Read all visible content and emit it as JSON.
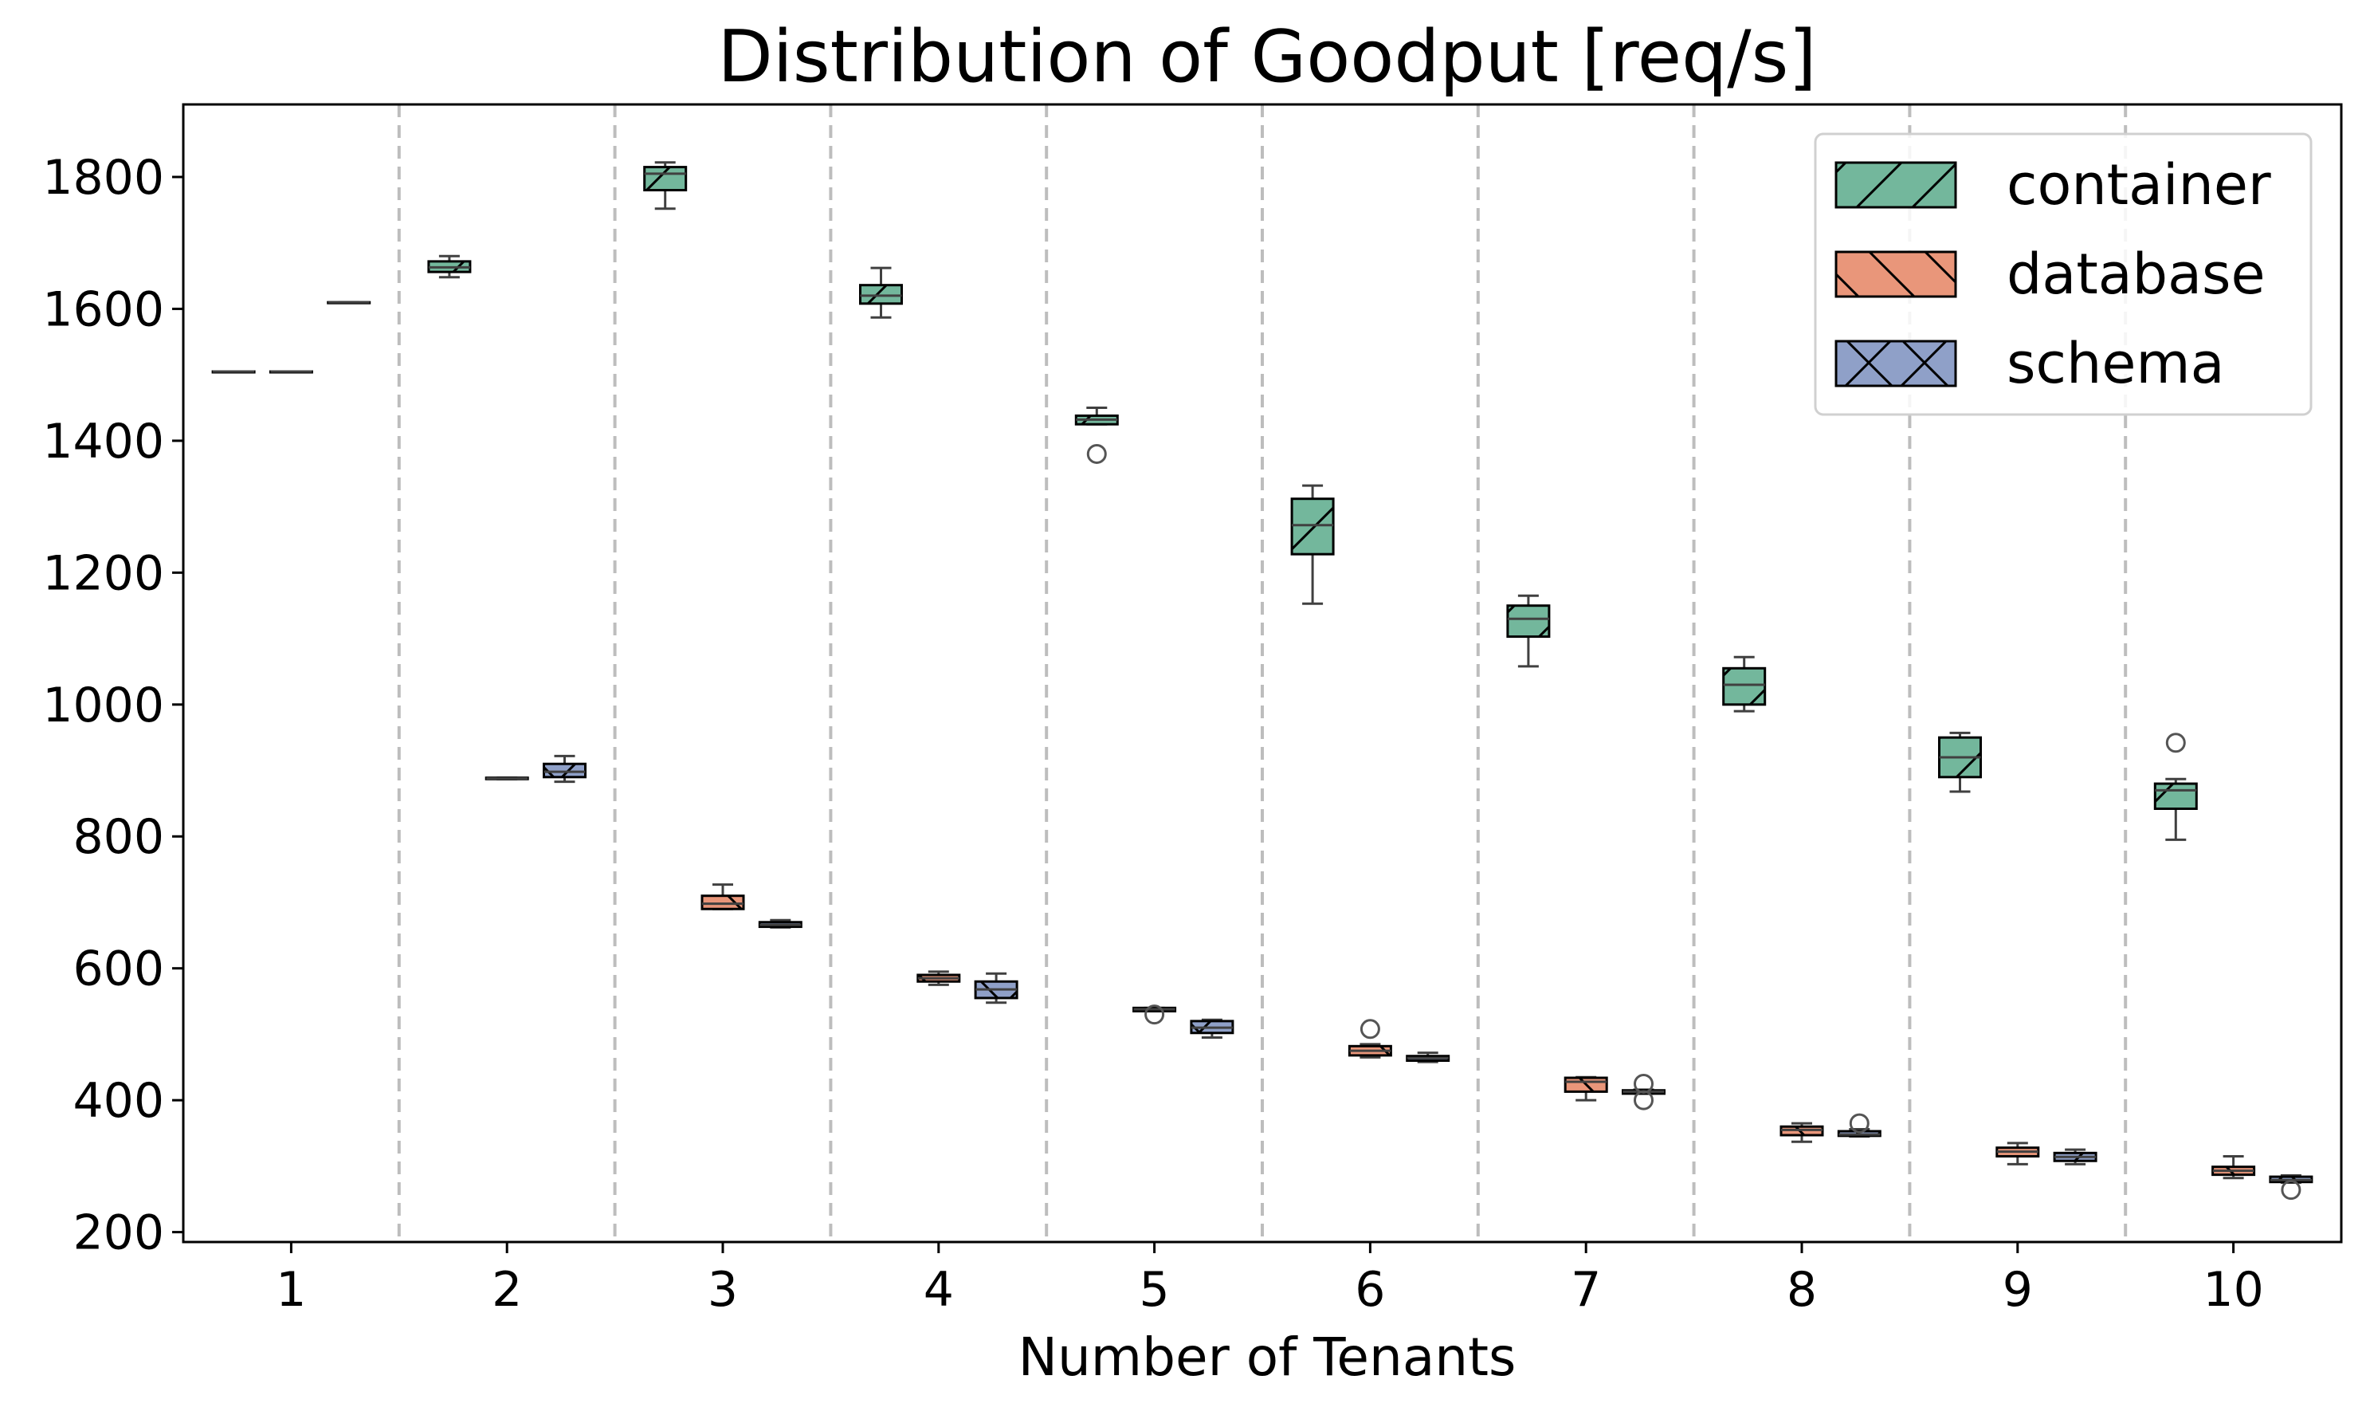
{
  "chart_data": {
    "type": "box",
    "title": "Distribution of Goodput [req/s]",
    "xlabel": "Number of Tenants",
    "ylabel": "",
    "categories": [
      "1",
      "2",
      "3",
      "4",
      "5",
      "6",
      "7",
      "8",
      "9",
      "10"
    ],
    "yticks": [
      "200",
      "400",
      "600",
      "800",
      "1000",
      "1200",
      "1400",
      "1600",
      "1800"
    ],
    "ylim": [
      185,
      1910
    ],
    "grid": "dashed vertical separators between groups",
    "legend_position": "top-right",
    "series": [
      {
        "name": "container",
        "color": "#73b79c",
        "hatch": "/",
        "boxes": [
          {
            "category": "1",
            "whislo": 1505,
            "q1": 1505,
            "med": 1505,
            "q3": 1505,
            "whishi": 1505,
            "fliers": []
          },
          {
            "category": "2",
            "whislo": 1648,
            "q1": 1656,
            "med": 1663,
            "q3": 1672,
            "whishi": 1680,
            "fliers": []
          },
          {
            "category": "3",
            "whislo": 1752,
            "q1": 1780,
            "med": 1805,
            "q3": 1815,
            "whishi": 1822,
            "fliers": []
          },
          {
            "category": "4",
            "whislo": 1587,
            "q1": 1608,
            "med": 1620,
            "q3": 1636,
            "whishi": 1662,
            "fliers": []
          },
          {
            "category": "5",
            "whislo": 1425,
            "q1": 1425,
            "med": 1432,
            "q3": 1438,
            "whishi": 1450,
            "fliers": [
              1380
            ]
          },
          {
            "category": "6",
            "whislo": 1153,
            "q1": 1228,
            "med": 1272,
            "q3": 1312,
            "whishi": 1332,
            "fliers": []
          },
          {
            "category": "7",
            "whislo": 1058,
            "q1": 1103,
            "med": 1130,
            "q3": 1150,
            "whishi": 1165,
            "fliers": []
          },
          {
            "category": "8",
            "whislo": 990,
            "q1": 1000,
            "med": 1030,
            "q3": 1055,
            "whishi": 1072,
            "fliers": []
          },
          {
            "category": "9",
            "whislo": 868,
            "q1": 890,
            "med": 920,
            "q3": 950,
            "whishi": 957,
            "fliers": []
          },
          {
            "category": "10",
            "whislo": 795,
            "q1": 842,
            "med": 870,
            "q3": 880,
            "whishi": 887,
            "fliers": [
              942
            ]
          }
        ]
      },
      {
        "name": "database",
        "color": "#e9967a",
        "hatch": "\\",
        "boxes": [
          {
            "category": "1",
            "whislo": 1505,
            "q1": 1505,
            "med": 1505,
            "q3": 1505,
            "whishi": 1505,
            "fliers": []
          },
          {
            "category": "2",
            "whislo": 887,
            "q1": 887,
            "med": 888,
            "q3": 889,
            "whishi": 889,
            "fliers": []
          },
          {
            "category": "3",
            "whislo": 690,
            "q1": 690,
            "med": 698,
            "q3": 710,
            "whishi": 727,
            "fliers": []
          },
          {
            "category": "4",
            "whislo": 575,
            "q1": 580,
            "med": 585,
            "q3": 590,
            "whishi": 595,
            "fliers": []
          },
          {
            "category": "5",
            "whislo": 535,
            "q1": 535,
            "med": 538,
            "q3": 540,
            "whishi": 540,
            "fliers": [
              530
            ]
          },
          {
            "category": "6",
            "whislo": 465,
            "q1": 468,
            "med": 475,
            "q3": 482,
            "whishi": 485,
            "fliers": [
              508
            ]
          },
          {
            "category": "7",
            "whislo": 400,
            "q1": 413,
            "med": 428,
            "q3": 434,
            "whishi": 435,
            "fliers": []
          },
          {
            "category": "8",
            "whislo": 337,
            "q1": 347,
            "med": 355,
            "q3": 360,
            "whishi": 365,
            "fliers": []
          },
          {
            "category": "9",
            "whislo": 303,
            "q1": 315,
            "med": 322,
            "q3": 328,
            "whishi": 335,
            "fliers": []
          },
          {
            "category": "10",
            "whislo": 282,
            "q1": 287,
            "med": 293,
            "q3": 299,
            "whishi": 315,
            "fliers": []
          }
        ]
      },
      {
        "name": "schema",
        "color": "#8fa0c8",
        "hatch": "x",
        "boxes": [
          {
            "category": "1",
            "whislo": 1610,
            "q1": 1610,
            "med": 1610,
            "q3": 1610,
            "whishi": 1610,
            "fliers": []
          },
          {
            "category": "2",
            "whislo": 883,
            "q1": 890,
            "med": 898,
            "q3": 910,
            "whishi": 922,
            "fliers": []
          },
          {
            "category": "3",
            "whislo": 662,
            "q1": 663,
            "med": 666,
            "q3": 670,
            "whishi": 673,
            "fliers": []
          },
          {
            "category": "4",
            "whislo": 548,
            "q1": 555,
            "med": 568,
            "q3": 580,
            "whishi": 592,
            "fliers": []
          },
          {
            "category": "5",
            "whislo": 495,
            "q1": 502,
            "med": 510,
            "q3": 520,
            "whishi": 522,
            "fliers": []
          },
          {
            "category": "6",
            "whislo": 458,
            "q1": 460,
            "med": 464,
            "q3": 467,
            "whishi": 472,
            "fliers": []
          },
          {
            "category": "7",
            "whislo": 410,
            "q1": 410,
            "med": 413,
            "q3": 415,
            "whishi": 416,
            "fliers": [
              400,
              425
            ]
          },
          {
            "category": "8",
            "whislo": 345,
            "q1": 346,
            "med": 348,
            "q3": 353,
            "whishi": 356,
            "fliers": [
              365
            ]
          },
          {
            "category": "9",
            "whislo": 303,
            "q1": 308,
            "med": 314,
            "q3": 320,
            "whishi": 325,
            "fliers": []
          },
          {
            "category": "10",
            "whislo": 275,
            "q1": 276,
            "med": 279,
            "q3": 284,
            "whishi": 286,
            "fliers": [
              264
            ]
          }
        ]
      }
    ]
  }
}
